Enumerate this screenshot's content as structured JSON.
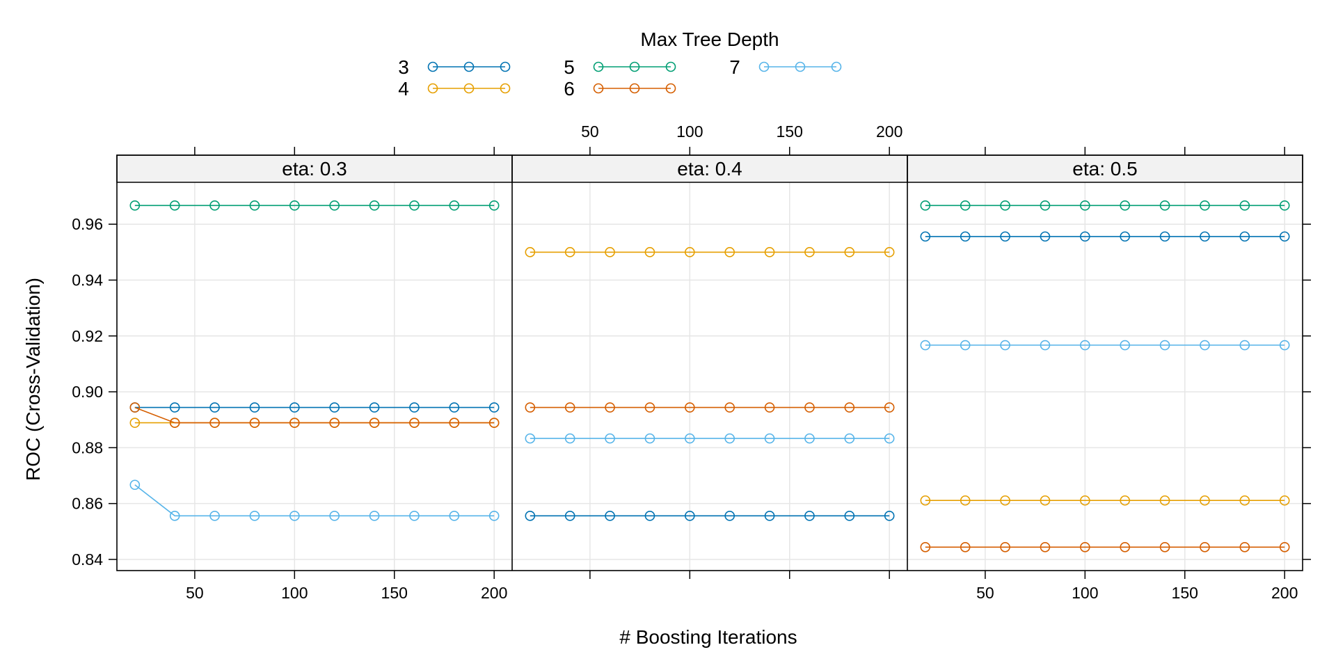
{
  "chart_data": {
    "type": "line",
    "legend_title": "Max Tree Depth",
    "legend_placement": "top",
    "xlabel": "# Boosting Iterations",
    "ylabel": "ROC (Cross-Validation)",
    "xlim": [
      11,
      209
    ],
    "ylim": [
      0.836,
      0.975
    ],
    "x_ticks": [
      50,
      100,
      150,
      200
    ],
    "y_ticks": [
      0.84,
      0.86,
      0.88,
      0.9,
      0.92,
      0.94,
      0.96
    ],
    "y_tick_labels": [
      "0.84",
      "0.86",
      "0.88",
      "0.90",
      "0.92",
      "0.94",
      "0.96"
    ],
    "grid": true,
    "x": [
      20,
      40,
      60,
      80,
      100,
      120,
      140,
      160,
      180,
      200
    ],
    "series_styles": [
      {
        "name": "3",
        "color": "#0072B2"
      },
      {
        "name": "4",
        "color": "#E69F00"
      },
      {
        "name": "5",
        "color": "#009E73"
      },
      {
        "name": "6",
        "color": "#D55E00"
      },
      {
        "name": "7",
        "color": "#56B4E9"
      }
    ],
    "panels": [
      {
        "title": "eta: 0.3",
        "series": [
          {
            "name": "5",
            "values": [
              0.9667,
              0.9667,
              0.9667,
              0.9667,
              0.9667,
              0.9667,
              0.9667,
              0.9667,
              0.9667,
              0.9667
            ]
          },
          {
            "name": "3",
            "values": [
              0.8944,
              0.8944,
              0.8944,
              0.8944,
              0.8944,
              0.8944,
              0.8944,
              0.8944,
              0.8944,
              0.8944
            ]
          },
          {
            "name": "4",
            "values": [
              0.8889,
              0.8889,
              0.8889,
              0.8889,
              0.8889,
              0.8889,
              0.8889,
              0.8889,
              0.8889,
              0.8889
            ]
          },
          {
            "name": "6",
            "values": [
              0.8944,
              0.8889,
              0.8889,
              0.8889,
              0.8889,
              0.8889,
              0.8889,
              0.8889,
              0.8889,
              0.8889
            ]
          },
          {
            "name": "7",
            "values": [
              0.8667,
              0.8556,
              0.8556,
              0.8556,
              0.8556,
              0.8556,
              0.8556,
              0.8556,
              0.8556,
              0.8556
            ]
          }
        ]
      },
      {
        "title": "eta: 0.4",
        "series": [
          {
            "name": "4",
            "values": [
              0.95,
              0.95,
              0.95,
              0.95,
              0.95,
              0.95,
              0.95,
              0.95,
              0.95,
              0.95
            ]
          },
          {
            "name": "3",
            "values": [
              0.8556,
              0.8556,
              0.8556,
              0.8556,
              0.8556,
              0.8556,
              0.8556,
              0.8556,
              0.8556,
              0.8556
            ]
          },
          {
            "name": "6",
            "values": [
              0.8944,
              0.8944,
              0.8944,
              0.8944,
              0.8944,
              0.8944,
              0.8944,
              0.8944,
              0.8944,
              0.8944
            ]
          },
          {
            "name": "7",
            "values": [
              0.8833,
              0.8833,
              0.8833,
              0.8833,
              0.8833,
              0.8833,
              0.8833,
              0.8833,
              0.8833,
              0.8833
            ]
          }
        ]
      },
      {
        "title": "eta: 0.5",
        "series": [
          {
            "name": "5",
            "values": [
              0.9667,
              0.9667,
              0.9667,
              0.9667,
              0.9667,
              0.9667,
              0.9667,
              0.9667,
              0.9667,
              0.9667
            ]
          },
          {
            "name": "3",
            "values": [
              0.9556,
              0.9556,
              0.9556,
              0.9556,
              0.9556,
              0.9556,
              0.9556,
              0.9556,
              0.9556,
              0.9556
            ]
          },
          {
            "name": "7",
            "values": [
              0.9167,
              0.9167,
              0.9167,
              0.9167,
              0.9167,
              0.9167,
              0.9167,
              0.9167,
              0.9167,
              0.9167
            ]
          },
          {
            "name": "4",
            "values": [
              0.8611,
              0.8611,
              0.8611,
              0.8611,
              0.8611,
              0.8611,
              0.8611,
              0.8611,
              0.8611,
              0.8611
            ]
          },
          {
            "name": "6",
            "values": [
              0.8444,
              0.8444,
              0.8444,
              0.8444,
              0.8444,
              0.8444,
              0.8444,
              0.8444,
              0.8444,
              0.8444
            ]
          }
        ]
      }
    ]
  }
}
